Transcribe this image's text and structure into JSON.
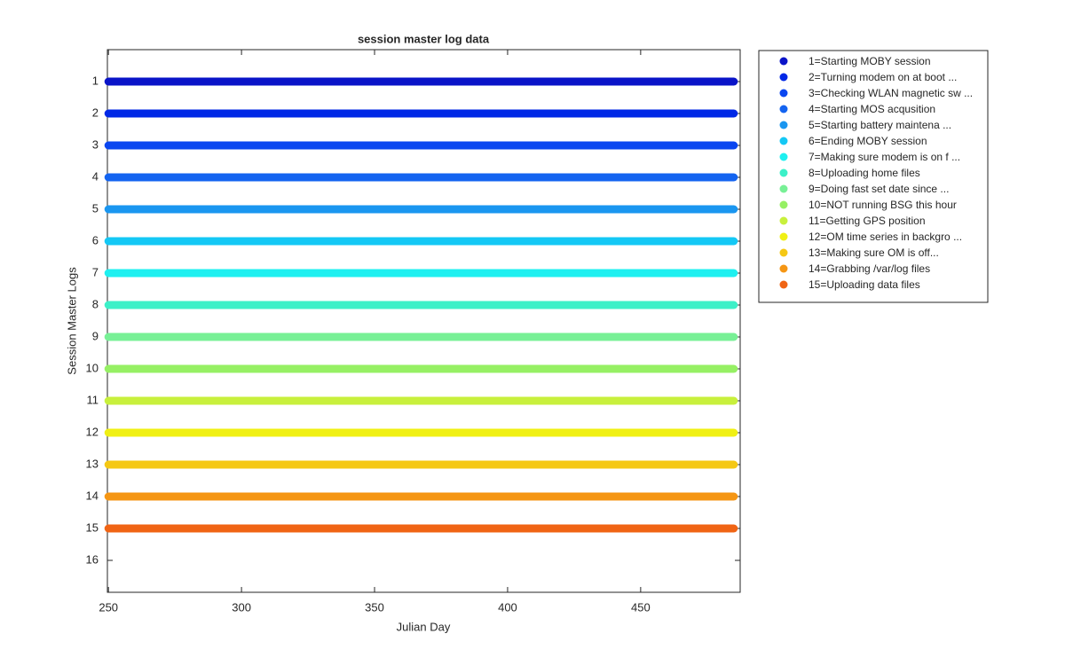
{
  "chart_data": {
    "type": "line",
    "title": "session master log data",
    "x_label": "Julian Day",
    "y_label": "Session Master Logs",
    "x": [
      250,
      485
    ],
    "xlim": [
      249.6,
      487.4
    ],
    "xticks": [
      250,
      300,
      350,
      400,
      450
    ],
    "ylim": [
      0,
      17
    ],
    "yticks": [
      1,
      2,
      3,
      4,
      5,
      6,
      7,
      8,
      9,
      10,
      11,
      12,
      13,
      14,
      15,
      16
    ],
    "y_reversed": true,
    "legend": "outside-right",
    "grid": false,
    "series": [
      {
        "name": "1=Starting MOBY session",
        "color": "#0a14c8",
        "values": [
          1,
          1
        ]
      },
      {
        "name": "2=Turning modem on at boot  ...",
        "color": "#0028e6",
        "values": [
          2,
          2
        ]
      },
      {
        "name": "3=Checking WLAN magnetic sw ...",
        "color": "#0a46f0",
        "values": [
          3,
          3
        ]
      },
      {
        "name": "4=Starting MOS acqusition",
        "color": "#1464f0",
        "values": [
          4,
          4
        ]
      },
      {
        "name": "5=Starting battery maintena ...",
        "color": "#1a96f0",
        "values": [
          5,
          5
        ]
      },
      {
        "name": "6=Ending MOBY session",
        "color": "#14c8f5",
        "values": [
          6,
          6
        ]
      },
      {
        "name": "7=Making sure modem is on f ...",
        "color": "#1ef0f0",
        "values": [
          7,
          7
        ]
      },
      {
        "name": "8=Uploading home files",
        "color": "#3cf0c8",
        "values": [
          8,
          8
        ]
      },
      {
        "name": "9=Doing fast set date since ...",
        "color": "#78f096",
        "values": [
          9,
          9
        ]
      },
      {
        "name": "10=NOT running BSG this hour",
        "color": "#96f064",
        "values": [
          10,
          10
        ]
      },
      {
        "name": "11=Getting GPS position",
        "color": "#c8f03c",
        "values": [
          11,
          11
        ]
      },
      {
        "name": "12=OM time series in backgro ...",
        "color": "#f0f014",
        "values": [
          12,
          12
        ]
      },
      {
        "name": "13=Making sure OM is off...",
        "color": "#f5c814",
        "values": [
          13,
          13
        ]
      },
      {
        "name": "14=Grabbing /var/log files",
        "color": "#f59614",
        "values": [
          14,
          14
        ]
      },
      {
        "name": "15=Uploading data files",
        "color": "#f06414",
        "values": [
          15,
          15
        ]
      }
    ]
  }
}
